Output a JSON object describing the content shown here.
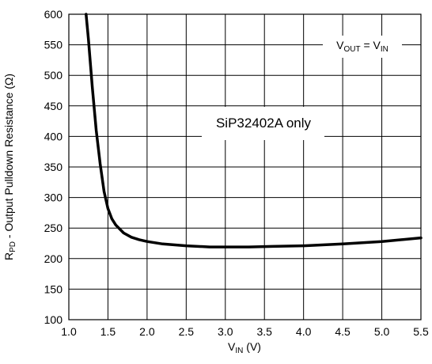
{
  "chart_data": {
    "type": "line",
    "title": "",
    "xlabel": {
      "main": "V",
      "sub": "IN",
      "unit": " (V)"
    },
    "ylabel": {
      "main": "R",
      "sub": "PD",
      "rest": " - Output Pulldown Resistance (Ω)"
    },
    "xlim": [
      1.0,
      5.5
    ],
    "ylim": [
      100,
      600
    ],
    "x_ticks": [
      "1.0",
      "1.5",
      "2.0",
      "2.5",
      "3.0",
      "3.5",
      "4.0",
      "4.5",
      "5.0",
      "5.5"
    ],
    "y_ticks": [
      "100",
      "150",
      "200",
      "250",
      "300",
      "350",
      "400",
      "450",
      "500",
      "550",
      "600"
    ],
    "grid": true,
    "annotations": {
      "product_note": "SiP32402A only",
      "condition": {
        "a": "V",
        "a_sub": "OUT",
        "eq": " = ",
        "b": "V",
        "b_sub": "IN"
      }
    },
    "series": [
      {
        "color": "#000000",
        "x": [
          1.22,
          1.25,
          1.3,
          1.35,
          1.4,
          1.45,
          1.5,
          1.55,
          1.6,
          1.7,
          1.8,
          1.9,
          2.0,
          2.2,
          2.5,
          2.8,
          3.0,
          3.3,
          3.6,
          4.0,
          4.5,
          5.0,
          5.5
        ],
        "y": [
          600,
          560,
          480,
          410,
          355,
          310,
          282,
          265,
          255,
          242,
          235,
          231,
          228,
          224,
          221,
          219,
          219,
          219,
          220,
          221,
          224,
          228,
          234
        ]
      }
    ]
  }
}
